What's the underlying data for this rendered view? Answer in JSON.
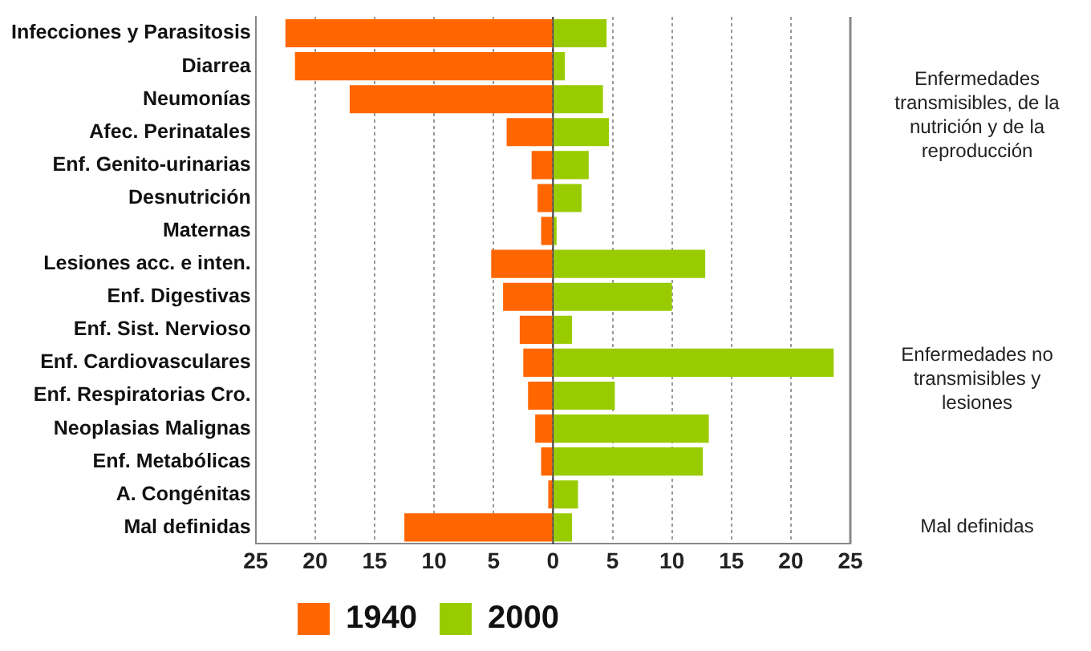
{
  "chart_data": {
    "type": "bar",
    "orientation": "horizontal",
    "stacked": true,
    "categories": [
      "Infecciones y Parasitosis",
      "Diarrea",
      "Neumonías",
      "Afec. Perinatales",
      "Enf. Genito-urinarias",
      "Desnutrición",
      "Maternas",
      "Lesiones acc. e inten.",
      "Enf. Digestivas",
      "Enf. Sist. Nervioso",
      "Enf. Cardiovasculares",
      "Enf. Respiratorias Cro.",
      "Neoplasias Malignas",
      "Enf. Metabólicas",
      "A. Congénitas",
      "Mal definidas"
    ],
    "series": [
      {
        "name": "1940",
        "color": "#ff6600",
        "values": [
          -22.5,
          -21.7,
          -17.1,
          -3.9,
          -1.8,
          -1.3,
          -1.0,
          -5.2,
          -4.2,
          -2.8,
          -2.5,
          -2.1,
          -1.5,
          -1.0,
          -0.4,
          -12.5
        ]
      },
      {
        "name": "2000",
        "color": "#99cc00",
        "values": [
          4.5,
          1.0,
          4.2,
          4.7,
          3.0,
          2.4,
          0.3,
          12.8,
          10.0,
          1.6,
          23.6,
          5.2,
          13.1,
          12.6,
          2.1,
          1.6
        ]
      }
    ],
    "xlim": [
      -25,
      25
    ],
    "xticks": [
      {
        "value": -25,
        "label": "25"
      },
      {
        "value": -20,
        "label": "20"
      },
      {
        "value": -15,
        "label": "15"
      },
      {
        "value": -10,
        "label": "10"
      },
      {
        "value": -5,
        "label": "5"
      },
      0,
      5,
      10,
      15,
      20,
      25
    ],
    "grid": "x",
    "legend": "bottom",
    "annotations": [
      "Enfermedades transmisibles, de la nutrición y de la reproducción",
      "Enfermedades no transmisibles y lesiones",
      "Mal definidas"
    ]
  }
}
